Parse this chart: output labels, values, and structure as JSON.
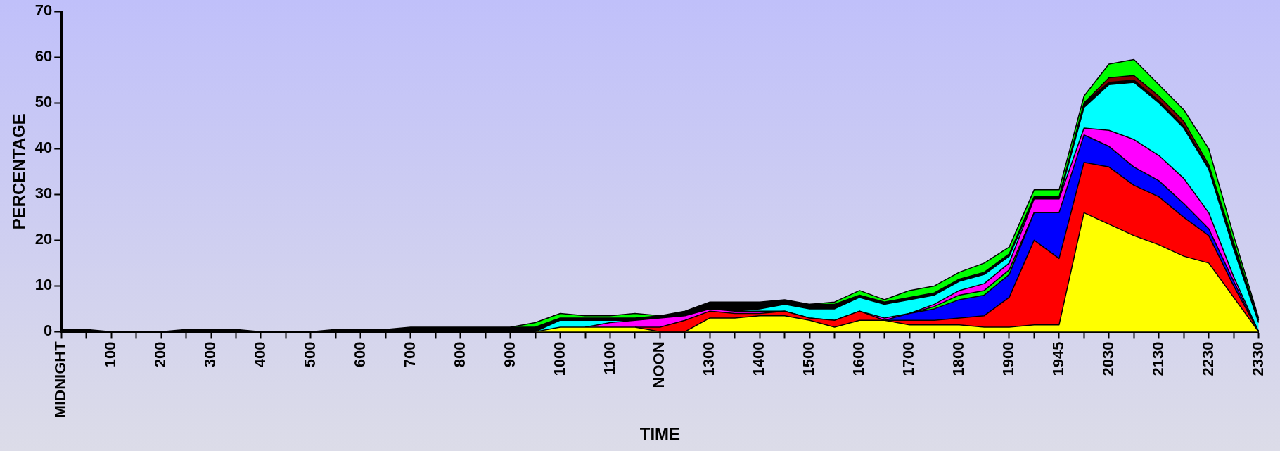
{
  "chart_data": {
    "type": "area",
    "stacked": true,
    "xlabel": "TIME",
    "ylabel": "PERCENTAGE",
    "grid": false,
    "legend": false,
    "categories": [
      "MIDNIGHT",
      null,
      "100",
      null,
      "200",
      null,
      "300",
      null,
      "400",
      null,
      "500",
      null,
      "600",
      null,
      "700",
      null,
      "800",
      null,
      "900",
      null,
      "1000",
      null,
      "1100",
      null,
      "NOON",
      null,
      "1300",
      null,
      "1400",
      null,
      "1500",
      null,
      "1600",
      null,
      "1700",
      null,
      "1800",
      null,
      "1900",
      null,
      "1945",
      null,
      "2030",
      null,
      "2130",
      null,
      "2230",
      null,
      "2330"
    ],
    "ylim": [
      0,
      70
    ],
    "yticks": [
      0,
      10,
      20,
      30,
      40,
      50,
      60,
      70
    ],
    "series": [
      {
        "color": "#ffff00",
        "values": [
          null,
          null,
          null,
          null,
          null,
          null,
          null,
          null,
          null,
          null,
          null,
          null,
          null,
          null,
          null,
          null,
          null,
          null,
          null,
          0,
          1,
          1,
          1,
          1,
          0,
          0,
          3,
          3,
          3.5,
          3.5,
          2.5,
          1,
          2.5,
          2.5,
          1.5,
          1.5,
          1.5,
          1,
          1,
          1.5,
          1.5,
          26,
          23.5,
          21,
          19,
          16.5,
          15,
          7.5,
          0
        ]
      },
      {
        "color": "#ff0000",
        "values": [
          null,
          null,
          null,
          null,
          null,
          null,
          null,
          null,
          null,
          null,
          null,
          null,
          null,
          null,
          null,
          null,
          null,
          null,
          null,
          null,
          null,
          null,
          null,
          0,
          1,
          2.5,
          1.5,
          1,
          0.5,
          1,
          0.5,
          1.5,
          2,
          0,
          1,
          1,
          1.5,
          2.5,
          6.5,
          18.5,
          14.5,
          11,
          12.5,
          11,
          10.5,
          8.5,
          6,
          2.5,
          0
        ]
      },
      {
        "color": "#0000ff",
        "values": [
          null,
          null,
          null,
          null,
          null,
          null,
          null,
          null,
          null,
          null,
          null,
          null,
          null,
          null,
          null,
          null,
          null,
          null,
          null,
          null,
          null,
          null,
          null,
          null,
          null,
          null,
          null,
          null,
          null,
          null,
          null,
          null,
          null,
          0,
          1.5,
          2.5,
          4,
          4.5,
          5,
          6,
          10,
          6,
          4.5,
          4,
          3.5,
          3,
          1.5,
          1,
          0
        ]
      },
      {
        "color": "#00ff00",
        "values": [
          null,
          null,
          null,
          null,
          null,
          null,
          null,
          null,
          null,
          null,
          null,
          null,
          null,
          null,
          null,
          null,
          null,
          null,
          null,
          null,
          null,
          null,
          null,
          null,
          null,
          null,
          null,
          null,
          null,
          null,
          null,
          null,
          null,
          null,
          0,
          0.5,
          1,
          1,
          1,
          0,
          null,
          null,
          null,
          null,
          null,
          null,
          null,
          null,
          null
        ]
      },
      {
        "color": "#ff00ff",
        "values": [
          null,
          null,
          null,
          null,
          null,
          null,
          null,
          null,
          null,
          null,
          null,
          null,
          null,
          null,
          null,
          null,
          null,
          null,
          null,
          null,
          null,
          0,
          1,
          1.5,
          2,
          1,
          0.5,
          0.5,
          0.5,
          0,
          0,
          0,
          0,
          0.5,
          0,
          0.5,
          1,
          1.5,
          1.5,
          3,
          3,
          1.5,
          3.5,
          6,
          5.5,
          5.5,
          3.5,
          1,
          0
        ]
      },
      {
        "color": "#00ffff",
        "values": [
          null,
          null,
          null,
          null,
          null,
          null,
          null,
          null,
          null,
          null,
          null,
          null,
          null,
          null,
          null,
          null,
          null,
          null,
          null,
          0,
          1.5,
          1.5,
          0.5,
          0,
          0,
          0,
          0,
          0,
          0.5,
          1.5,
          2,
          2.5,
          3,
          3,
          3,
          2,
          2,
          2,
          1.5,
          0,
          0,
          4.5,
          10,
          12.5,
          11.5,
          11,
          9.5,
          6,
          2
        ]
      },
      {
        "color": "#000000",
        "values": [
          0.5,
          0.5,
          0,
          0,
          0,
          0.5,
          0.5,
          0.5,
          0,
          0,
          0,
          0.5,
          0.5,
          0.5,
          1,
          1,
          1,
          1,
          1,
          1,
          0.5,
          0.5,
          0.5,
          0.5,
          0.5,
          1,
          1.5,
          2,
          1.5,
          1,
          1,
          1,
          0.5,
          0.5,
          0.5,
          0.5,
          0.5,
          0.5,
          0.5,
          0.5,
          0.5,
          1,
          0.5,
          0.5,
          0.5,
          0.5,
          0.5,
          1,
          0.5
        ]
      },
      {
        "color": "#800000",
        "values": [
          null,
          null,
          null,
          null,
          null,
          null,
          null,
          null,
          null,
          null,
          null,
          null,
          null,
          null,
          null,
          null,
          null,
          null,
          null,
          null,
          null,
          null,
          null,
          null,
          null,
          null,
          null,
          null,
          null,
          null,
          null,
          null,
          null,
          null,
          null,
          null,
          null,
          null,
          null,
          null,
          null,
          0,
          1,
          1,
          1,
          1,
          0.5,
          0.5,
          0
        ]
      },
      {
        "color": "#00ff00",
        "values": [
          null,
          null,
          null,
          null,
          null,
          null,
          null,
          null,
          null,
          null,
          null,
          null,
          null,
          null,
          null,
          null,
          null,
          null,
          0,
          1,
          1,
          0.5,
          0.5,
          1,
          0,
          null,
          null,
          null,
          null,
          null,
          0,
          0.5,
          1,
          0.5,
          1.5,
          1.5,
          1.5,
          2,
          1.5,
          1.5,
          1.5,
          1.5,
          3,
          3.5,
          2.5,
          2.5,
          3.5,
          1.5,
          0.5
        ]
      }
    ]
  }
}
